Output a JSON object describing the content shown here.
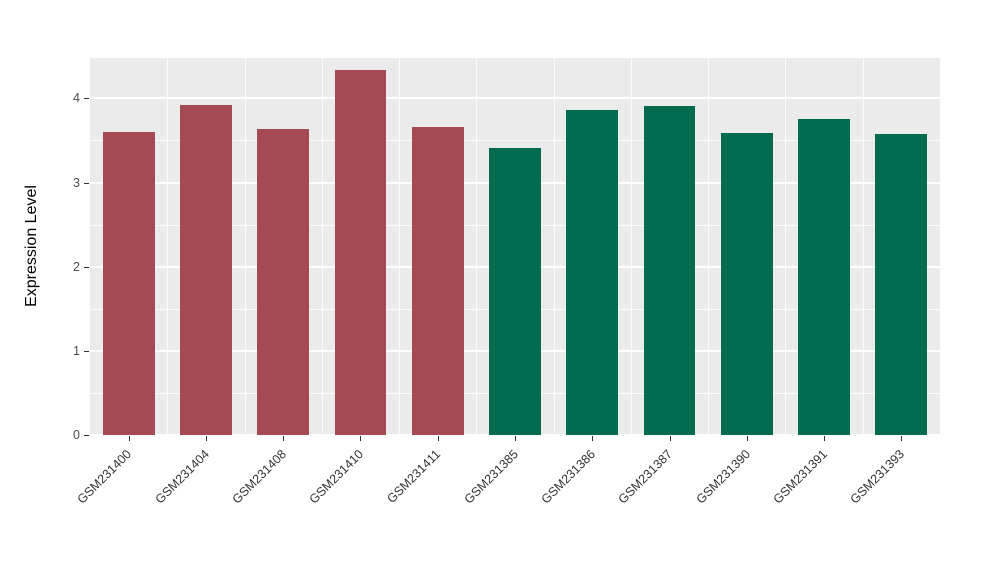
{
  "chart_data": {
    "type": "bar",
    "title": "",
    "xlabel": "",
    "ylabel": "Expression Level",
    "categories": [
      "GSM231400",
      "GSM231404",
      "GSM231408",
      "GSM231410",
      "GSM231411",
      "GSM231385",
      "GSM231386",
      "GSM231387",
      "GSM231390",
      "GSM231391",
      "GSM231393"
    ],
    "values": [
      3.6,
      3.92,
      3.64,
      4.34,
      3.66,
      3.41,
      3.86,
      3.91,
      3.59,
      3.76,
      3.58
    ],
    "bar_colors": [
      "#A34A52",
      "#A34A52",
      "#A34A52",
      "#A34A52",
      "#A34A52",
      "#006B4D",
      "#006B4D",
      "#006B4D",
      "#006B4D",
      "#006B4D",
      "#006B4D"
    ],
    "group_colors": {
      "group1": "#A34A52",
      "group2": "#006B4D"
    },
    "ylim": [
      0,
      4.48
    ],
    "yticks": [
      0,
      1,
      2,
      3,
      4
    ],
    "yticks_minor": [
      0.5,
      1.5,
      2.5,
      3.5
    ],
    "grid": "on",
    "legend": "none",
    "panel_background": "#EBEBEB",
    "grid_color": "#FFFFFF",
    "bar_width_fraction": 0.67
  }
}
